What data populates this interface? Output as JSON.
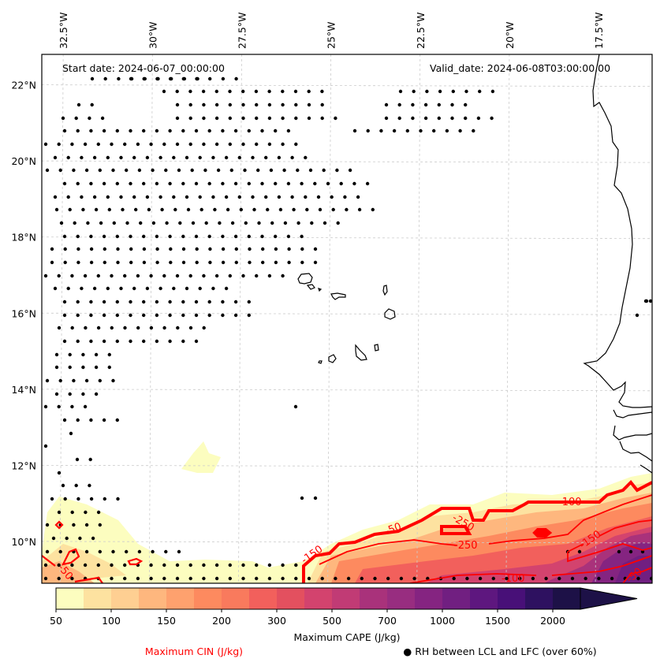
{
  "chart_data": {
    "type": "map",
    "title": "",
    "annotations": {
      "start_date": "Start date: 2024-06-07_00:00:00",
      "valid_date": "Valid_date: 2024-06-08T03:00:00.00"
    },
    "lon_ticks": [
      "32.5°W",
      "30°W",
      "27.5°W",
      "25°W",
      "22.5°W",
      "20°W",
      "17.5°W"
    ],
    "lon_values": [
      -32.5,
      -30,
      -27.5,
      -25,
      -22.5,
      -20,
      -17.5
    ],
    "lat_ticks": [
      "22°N",
      "20°N",
      "18°N",
      "16°N",
      "14°N",
      "12°N",
      "10°N"
    ],
    "lat_values": [
      22,
      20,
      18,
      16,
      14,
      12,
      10
    ],
    "extent": {
      "lon_min": -33.1,
      "lon_max": -16.0,
      "lat_min": 8.9,
      "lat_max": 22.8
    },
    "gridlines": true,
    "colorbar": {
      "label": "Maximum CAPE (J/kg)",
      "levels": [
        50,
        75,
        100,
        125,
        150,
        175,
        200,
        250,
        300,
        350,
        500,
        600,
        700,
        850,
        1000,
        1250,
        1500,
        1750,
        2000
      ],
      "tick_labels": [
        "50",
        "100",
        "150",
        "200",
        "300",
        "500",
        "700",
        "1000",
        "1500",
        "2000"
      ],
      "extend": "max",
      "colors": [
        "#fcfdbf",
        "#fde2a0",
        "#fecf92",
        "#feb77e",
        "#fea16e",
        "#fd8a5f",
        "#f97a5d",
        "#f2605c",
        "#e3505f",
        "#d3436e",
        "#c13b75",
        "#a9327b",
        "#982d80",
        "#852481",
        "#711f81",
        "#5e177f",
        "#481078",
        "#2e1160",
        "#1d1147"
      ],
      "placement": "bottom"
    },
    "cin_contours": {
      "label": "Maximum CIN (J/kg)",
      "color": "#ff0000",
      "levels_labeled": [
        "-50",
        "-100",
        "-150",
        "-250",
        "-100",
        "-250",
        "-150",
        "-50",
        "-100",
        "-50"
      ]
    },
    "rh_markers": {
      "label": "● RH between LCL and LFC (over 60%)",
      "marker": "filled-circle",
      "color": "#000000"
    }
  }
}
